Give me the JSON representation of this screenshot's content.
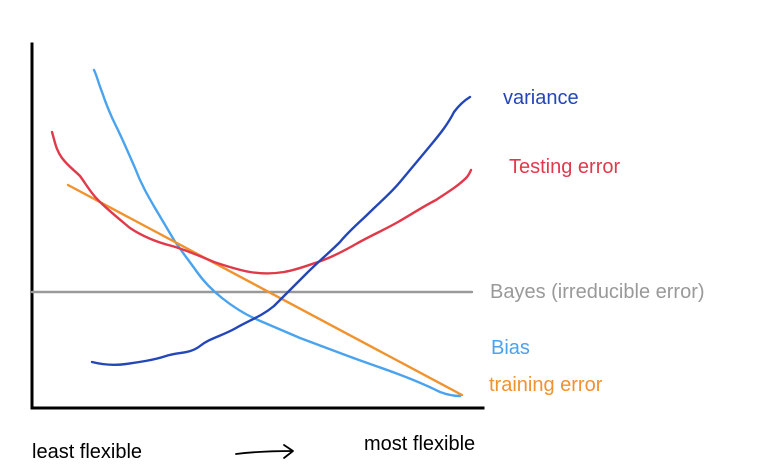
{
  "diagram": {
    "curves": {
      "variance": {
        "label": "variance",
        "color": "#2346b8"
      },
      "testing": {
        "label": "Testing error",
        "color": "#e0394a"
      },
      "bayes": {
        "label": "Bayes (irreducible error)",
        "color": "#999999"
      },
      "bias": {
        "label": "Bias",
        "color": "#4aa3ee"
      },
      "training": {
        "label": "training error",
        "color": "#f0922e"
      }
    },
    "x_axis": {
      "left_label": "least flexible",
      "right_label": "most flexible",
      "arrow": "right-arrow"
    }
  }
}
